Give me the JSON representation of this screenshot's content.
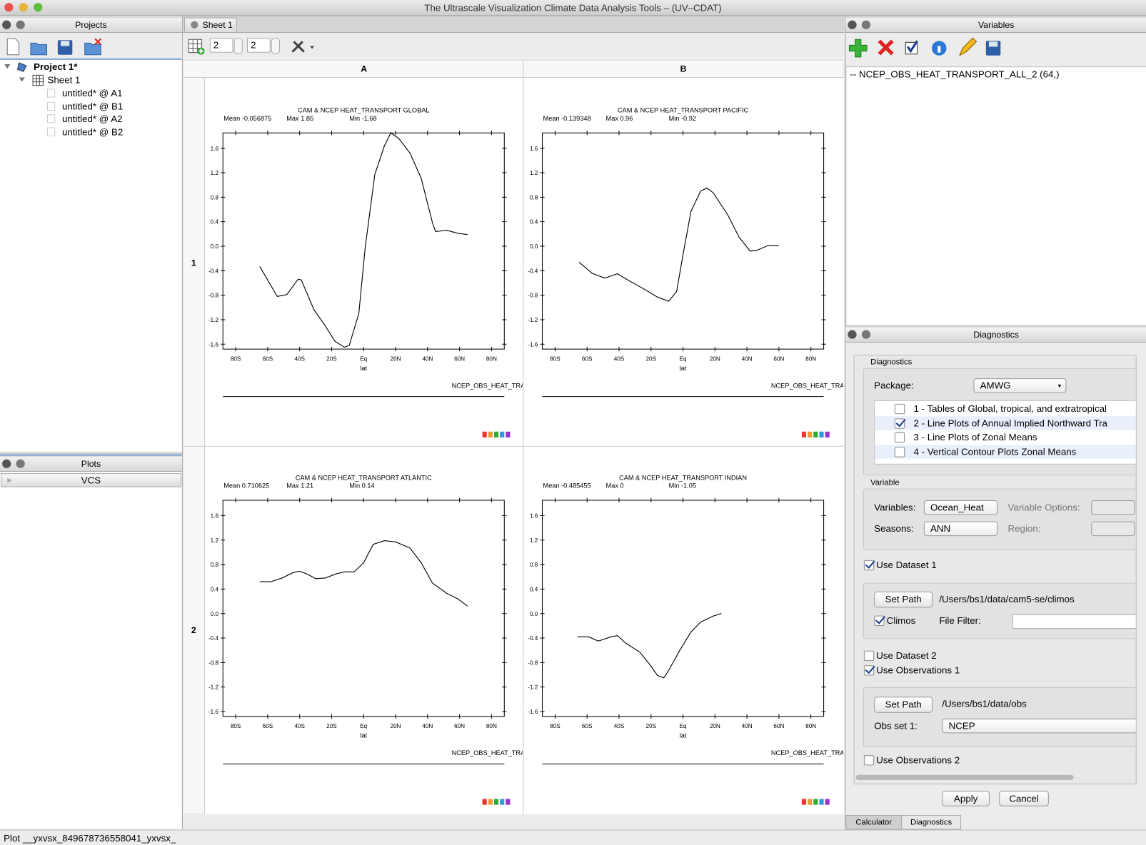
{
  "window_title": "The Ultrascale Visualization Climate Data Analysis Tools – (UV–CDAT)",
  "projects": {
    "title": "Projects",
    "project": "Project 1*",
    "sheet": "Sheet 1",
    "cells": [
      "untitled* @ A1",
      "untitled* @ B1",
      "untitled* @ A2",
      "untitled* @ B2"
    ]
  },
  "plots": {
    "title": "Plots",
    "items": [
      "VCS"
    ]
  },
  "sheet": {
    "tab": "Sheet 1",
    "rows": "2",
    "columns": "2",
    "column_headers": [
      "A",
      "B"
    ],
    "row_headers": [
      "1",
      "2"
    ]
  },
  "variables": {
    "title": "Variables",
    "items": [
      "-- NCEP_OBS_HEAT_TRANSPORT_ALL_2 (64,)"
    ]
  },
  "diagnostics": {
    "title": "Diagnostics",
    "group_label": "Diagnostics",
    "package_label": "Package:",
    "package": "AMWG",
    "packages_list": [
      {
        "label": "1 - Tables of Global, tropical, and extratropical",
        "checked": false
      },
      {
        "label": "2 - Line Plots of Annual Implied Northward Tra",
        "checked": true
      },
      {
        "label": "3 - Line Plots of  Zonal Means",
        "checked": false
      },
      {
        "label": "4 - Vertical Contour Plots Zonal Means",
        "checked": false
      }
    ],
    "variable_label": "Variable",
    "variables_label": "Variables:",
    "variables": "Ocean_Heat",
    "variable_options_label": "Variable Options:",
    "seasons_label": "Seasons:",
    "seasons": "ANN",
    "region_label": "Region:",
    "dataset1": {
      "label": "Use Dataset 1",
      "checked": true
    },
    "set_path_button": "Set Path",
    "dataset1_path": "/Users/bs1/data/cam5-se/climos",
    "climos": {
      "label": "Climos",
      "checked": true
    },
    "file_filter_label": "File Filter:",
    "dataset2": {
      "label": "Use Dataset 2",
      "checked": false
    },
    "observations1": {
      "label": "Use Observations 1",
      "checked": true
    },
    "obs_set_path_button": "Set Path",
    "obs_path": "/Users/bs1/data/obs",
    "obs_set_label": "Obs set 1:",
    "obs_set": "NCEP",
    "observations2": {
      "label": "Use Observations 2",
      "checked": false
    },
    "apply": "Apply",
    "cancel": "Cancel"
  },
  "bottom_tabs": [
    "Calculator",
    "Diagnostics"
  ],
  "status": "Plot __yxvsx_849678736558041_yxvsx_",
  "chart_data": [
    {
      "type": "line",
      "title": "CAM & NCEP HEAT_TRANSPORT GLOBAL",
      "stats": [
        "Mean -0.056875",
        "Max 1.85",
        "Min -1.68"
      ],
      "xlabel": "lat",
      "footer": "NCEP_OBS_HEAT_TRAN:",
      "color": "#000000",
      "x": [
        -65,
        -54,
        -48,
        -41,
        -39,
        -31,
        -24,
        -18,
        -12,
        -9,
        -3,
        1,
        7,
        13,
        17,
        22,
        29,
        36,
        43,
        45,
        52,
        59,
        65
      ],
      "values": [
        -0.33,
        -0.82,
        -0.79,
        -0.54,
        -0.55,
        -1.04,
        -1.3,
        -1.55,
        -1.65,
        -1.62,
        -1.1,
        -0.02,
        1.17,
        1.64,
        1.85,
        1.76,
        1.52,
        1.11,
        0.39,
        0.24,
        0.26,
        0.21,
        0.19
      ],
      "xlim": [
        -88,
        88
      ],
      "ylim": [
        -1.68,
        1.85
      ],
      "xticks": [
        {
          "value": -80,
          "label": "80S"
        },
        {
          "value": -60,
          "label": "60S"
        },
        {
          "value": -40,
          "label": "40S"
        },
        {
          "value": -20,
          "label": "20S"
        },
        {
          "value": 0,
          "label": "Eq"
        },
        {
          "value": 20,
          "label": "20N"
        },
        {
          "value": 40,
          "label": "40N"
        },
        {
          "value": 60,
          "label": "60N"
        },
        {
          "value": 80,
          "label": "80N"
        }
      ],
      "yticks": [
        -1.6,
        -1.2,
        -0.8,
        -0.4,
        {
          "value": 0,
          "label": "0.0"
        },
        0.4,
        0.8,
        1.2,
        1.6
      ]
    },
    {
      "type": "line",
      "title": "CAM & NCEP HEAT_TRANSPORT PACIFIC",
      "stats": [
        "Mean -0.139348",
        "Max 0.96",
        "Min -0.92"
      ],
      "xlabel": "lat",
      "footer": "NCEP_OBS_HEAT_TRAN:",
      "color": "#000000",
      "x": [
        -65,
        -57,
        -49,
        -41,
        -34,
        -25,
        -16,
        -9,
        -4,
        0,
        5,
        11,
        15,
        19,
        28,
        35,
        42,
        46,
        53,
        60
      ],
      "values": [
        -0.26,
        -0.44,
        -0.52,
        -0.45,
        -0.56,
        -0.69,
        -0.83,
        -0.9,
        -0.74,
        -0.14,
        0.57,
        0.9,
        0.95,
        0.87,
        0.51,
        0.15,
        -0.08,
        -0.07,
        0.01,
        0.01
      ],
      "xlim": [
        -88,
        88
      ],
      "ylim": [
        -1.68,
        1.85
      ],
      "xticks": [
        {
          "value": -80,
          "label": "80S"
        },
        {
          "value": -60,
          "label": "60S"
        },
        {
          "value": -40,
          "label": "40S"
        },
        {
          "value": -20,
          "label": "20S"
        },
        {
          "value": 0,
          "label": "Eq"
        },
        {
          "value": 20,
          "label": "20N"
        },
        {
          "value": 40,
          "label": "40N"
        },
        {
          "value": 60,
          "label": "60N"
        },
        {
          "value": 80,
          "label": "80N"
        }
      ],
      "yticks": [
        -1.6,
        -1.2,
        -0.8,
        -0.4,
        {
          "value": 0,
          "label": "0.0"
        },
        0.4,
        0.8,
        1.2,
        1.6
      ]
    },
    {
      "type": "line",
      "title": "CAM & NCEP HEAT_TRANSPORT ATLANTIC",
      "stats": [
        "Mean 0.710625",
        "Max 1.21",
        "Min 0.14"
      ],
      "xlabel": "lat",
      "footer": "NCEP_OBS_HEAT_TRAN:",
      "color": "#000000",
      "x": [
        -65,
        -58,
        -51,
        -44,
        -40,
        -35,
        -30,
        -24,
        -17,
        -12,
        -6,
        0,
        6,
        13,
        20,
        29,
        36,
        43,
        52,
        59,
        65
      ],
      "values": [
        0.52,
        0.52,
        0.58,
        0.67,
        0.69,
        0.64,
        0.57,
        0.58,
        0.65,
        0.68,
        0.68,
        0.83,
        1.13,
        1.19,
        1.17,
        1.07,
        0.83,
        0.5,
        0.33,
        0.24,
        0.12
      ],
      "xlim": [
        -88,
        88
      ],
      "ylim": [
        -1.68,
        1.85
      ],
      "xticks": [
        {
          "value": -80,
          "label": "80S"
        },
        {
          "value": -60,
          "label": "60S"
        },
        {
          "value": -40,
          "label": "40S"
        },
        {
          "value": -20,
          "label": "20S"
        },
        {
          "value": 0,
          "label": "Eq"
        },
        {
          "value": 20,
          "label": "20N"
        },
        {
          "value": 40,
          "label": "40N"
        },
        {
          "value": 60,
          "label": "60N"
        },
        {
          "value": 80,
          "label": "80N"
        }
      ],
      "yticks": [
        -1.6,
        -1.2,
        -0.8,
        -0.4,
        {
          "value": 0,
          "label": "0.0"
        },
        0.4,
        0.8,
        1.2,
        1.6
      ]
    },
    {
      "type": "line",
      "title": "CAM & NCEP HEAT_TRANSPORT INDIAN",
      "stats": [
        "Mean -0.485455",
        "Max 0",
        "Min -1.05"
      ],
      "xlabel": "lat",
      "footer": "NCEP_OBS_HEAT_TRAN:",
      "color": "#000000",
      "x": [
        -66,
        -59,
        -53,
        -45,
        -41,
        -36,
        -27,
        -20,
        -16,
        -12,
        -9,
        -2,
        5,
        11,
        19,
        24
      ],
      "values": [
        -0.38,
        -0.38,
        -0.45,
        -0.38,
        -0.36,
        -0.48,
        -0.63,
        -0.86,
        -1.01,
        -1.05,
        -0.93,
        -0.6,
        -0.3,
        -0.14,
        -0.04,
        0
      ],
      "xlim": [
        -88,
        88
      ],
      "ylim": [
        -1.68,
        1.85
      ],
      "xticks": [
        {
          "value": -80,
          "label": "80S"
        },
        {
          "value": -60,
          "label": "60S"
        },
        {
          "value": -40,
          "label": "40S"
        },
        {
          "value": -20,
          "label": "20S"
        },
        {
          "value": 0,
          "label": "Eq"
        },
        {
          "value": 20,
          "label": "20N"
        },
        {
          "value": 40,
          "label": "40N"
        },
        {
          "value": 60,
          "label": "60N"
        },
        {
          "value": 80,
          "label": "80N"
        }
      ],
      "yticks": [
        -1.6,
        -1.2,
        -0.8,
        -0.4,
        {
          "value": 0,
          "label": "0.0"
        },
        0.4,
        0.8,
        1.2,
        1.6
      ]
    }
  ]
}
